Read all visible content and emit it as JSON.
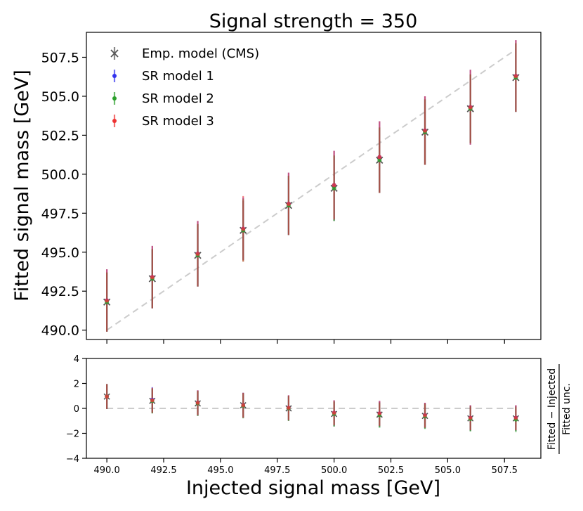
{
  "chart_data": {
    "type": "scatter",
    "title": "Signal strength = 350",
    "xlabel": "Injected signal mass [GeV]",
    "ylabel": "Fitted signal mass [GeV]",
    "residual_ylabel_numerator": "Fitted − Injected",
    "residual_ylabel_denominator": "Fitted unc.",
    "x": [
      490.0,
      492.0,
      494.0,
      496.0,
      498.0,
      500.0,
      502.0,
      504.0,
      506.0,
      508.0
    ],
    "x_ticks": [
      490.0,
      492.5,
      495.0,
      497.5,
      500.0,
      502.5,
      505.0,
      507.5
    ],
    "x_tick_labels": [
      "490.0",
      "492.5",
      "495.0",
      "497.5",
      "500.0",
      "502.5",
      "505.0",
      "507.5"
    ],
    "xlim": [
      489.1,
      509.1
    ],
    "main": {
      "ylim": [
        489.4,
        509.1
      ],
      "y_ticks": [
        490.0,
        492.5,
        495.0,
        497.5,
        500.0,
        502.5,
        505.0,
        507.5
      ],
      "y_tick_labels": [
        "490.0",
        "492.5",
        "495.0",
        "497.5",
        "500.0",
        "502.5",
        "505.0",
        "507.5"
      ],
      "reference_line": "y = x",
      "series": [
        {
          "name": "Emp. model (CMS)",
          "marker": "x",
          "color": "#555555",
          "y": [
            491.8,
            493.3,
            494.8,
            496.4,
            498.0,
            499.1,
            500.9,
            502.7,
            504.2,
            506.2
          ],
          "err": [
            1.9,
            1.9,
            2.0,
            1.9,
            1.9,
            2.1,
            2.1,
            2.1,
            2.2,
            2.2
          ]
        },
        {
          "name": "SR model 1",
          "marker": "dot",
          "color": "#3333ee",
          "y": [
            491.9,
            493.4,
            494.9,
            496.5,
            498.1,
            499.3,
            501.1,
            502.8,
            504.3,
            506.3
          ],
          "err": [
            2.0,
            2.0,
            2.1,
            2.0,
            2.0,
            2.2,
            2.3,
            2.2,
            2.4,
            2.3
          ]
        },
        {
          "name": "SR model 2",
          "marker": "dot",
          "color": "#2ca02c",
          "y": [
            491.8,
            493.3,
            494.8,
            496.4,
            498.0,
            499.1,
            500.9,
            502.7,
            504.2,
            506.2
          ],
          "err": [
            1.9,
            1.9,
            2.0,
            2.0,
            1.9,
            2.1,
            2.1,
            2.1,
            2.2,
            2.2
          ]
        },
        {
          "name": "SR model 3",
          "marker": "dot",
          "color": "#ee3333",
          "y": [
            491.9,
            493.4,
            494.9,
            496.5,
            498.1,
            499.3,
            501.1,
            502.8,
            504.3,
            506.3
          ],
          "err": [
            2.0,
            2.0,
            2.1,
            2.1,
            2.0,
            2.2,
            2.3,
            2.2,
            2.4,
            2.3
          ]
        }
      ]
    },
    "residual": {
      "ylim": [
        -4,
        4
      ],
      "y_ticks": [
        -4,
        -2,
        0,
        2,
        4
      ],
      "y_tick_labels": [
        "−4",
        "−2",
        "0",
        "2",
        "4"
      ],
      "reference_line": "y = 0",
      "series": [
        {
          "name": "Emp. model (CMS)",
          "y": [
            0.95,
            0.6,
            0.4,
            0.25,
            0.0,
            -0.45,
            -0.5,
            -0.6,
            -0.8,
            -0.8
          ]
        },
        {
          "name": "SR model 1",
          "y": [
            0.95,
            0.7,
            0.45,
            0.25,
            0.05,
            -0.35,
            -0.4,
            -0.55,
            -0.75,
            -0.75
          ]
        },
        {
          "name": "SR model 2",
          "y": [
            0.95,
            0.6,
            0.4,
            0.2,
            0.0,
            -0.45,
            -0.55,
            -0.65,
            -0.85,
            -0.9
          ]
        },
        {
          "name": "SR model 3",
          "y": [
            0.95,
            0.65,
            0.45,
            0.25,
            0.05,
            -0.35,
            -0.4,
            -0.55,
            -0.75,
            -0.75
          ]
        }
      ],
      "err": 1.0
    },
    "legend": [
      "Emp. model (CMS)",
      "SR model 1",
      "SR model 2",
      "SR model 3"
    ],
    "legend_location": "top-left",
    "grid": false
  }
}
